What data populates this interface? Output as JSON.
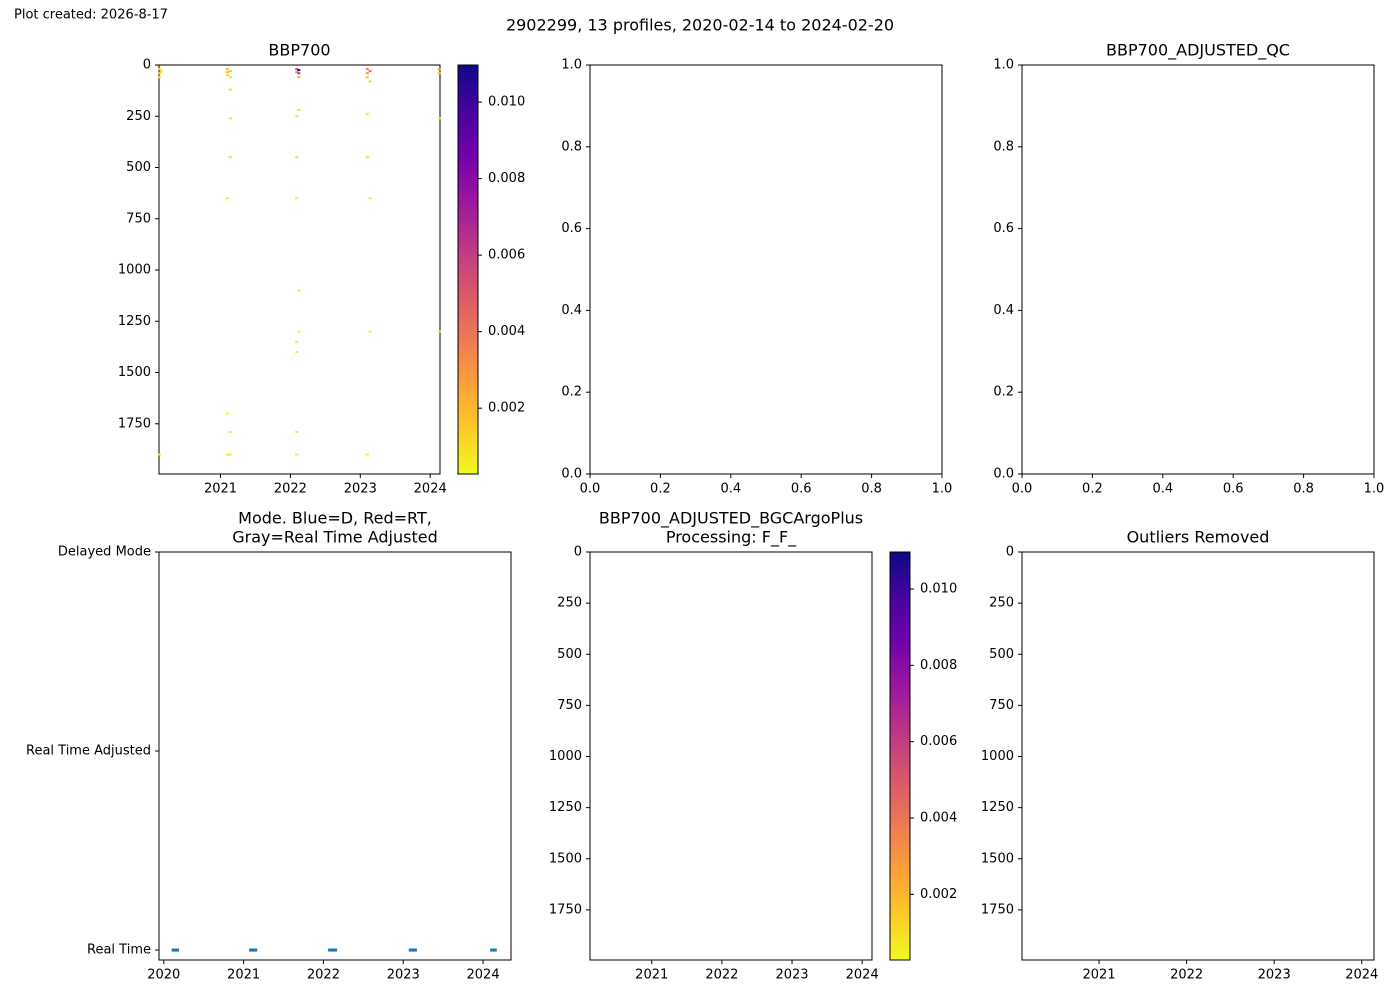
{
  "figure": {
    "note": "Plot created: 2026-8-17",
    "title": "2902299, 13 profiles, 2020-02-14 to 2024-02-20"
  },
  "chart_data": [
    {
      "type": "scatter",
      "title": [
        "BBP700"
      ],
      "x": [
        2020.13,
        2020.13,
        2020.13,
        2020.13,
        2020.15,
        2021.1,
        2021.1,
        2021.1,
        2021.1,
        2021.1,
        2021.1,
        2021.14,
        2021.14,
        2021.14,
        2021.14,
        2021.14,
        2021.14,
        2021.14,
        2022.09,
        2022.09,
        2022.09,
        2022.09,
        2022.09,
        2022.09,
        2022.09,
        2022.09,
        2022.09,
        2022.12,
        2022.12,
        2022.12,
        2022.12,
        2022.12,
        2022.12,
        2023.1,
        2023.1,
        2023.1,
        2023.1,
        2023.1,
        2023.1,
        2023.14,
        2023.14,
        2023.14,
        2023.14,
        2024.13,
        2024.13,
        2024.13,
        2024.13
      ],
      "y": [
        20,
        40,
        60,
        1900,
        30,
        20,
        35,
        50,
        650,
        1700,
        1900,
        30,
        60,
        120,
        260,
        450,
        1790,
        1900,
        20,
        35,
        250,
        450,
        650,
        1350,
        1400,
        1790,
        1900,
        25,
        40,
        60,
        220,
        1100,
        1300,
        20,
        40,
        60,
        240,
        450,
        1900,
        30,
        80,
        650,
        1300,
        20,
        40,
        260,
        1300
      ],
      "values": [
        0.0012,
        0.0015,
        0.0009,
        0.0004,
        0.0008,
        0.0018,
        0.0022,
        0.0013,
        0.0006,
        0.0005,
        0.0004,
        0.0016,
        0.001,
        0.0007,
        0.0006,
        0.0008,
        0.0005,
        0.0004,
        0.0052,
        0.0035,
        0.0008,
        0.0007,
        0.0006,
        0.0005,
        0.0004,
        0.0005,
        0.0004,
        0.0105,
        0.0062,
        0.0021,
        0.0007,
        0.0005,
        0.0005,
        0.0038,
        0.0028,
        0.0016,
        0.0008,
        0.0009,
        0.0004,
        0.0041,
        0.0012,
        0.0006,
        0.0005,
        0.0025,
        0.0019,
        0.0006,
        0.0004
      ],
      "colormap": "plasma_r",
      "clim": [
        0.00028,
        0.01097
      ],
      "cticks": [
        0.002,
        0.004,
        0.006,
        0.008,
        {
          "value": 0.01,
          "label": "0.010"
        }
      ],
      "xlim": [
        2020.12,
        2024.14
      ],
      "xticks": [
        2021,
        2022,
        2023,
        2024
      ],
      "ylim": [
        1995,
        0
      ],
      "yticks": [
        0,
        250,
        500,
        750,
        1000,
        1250,
        1500,
        1750
      ]
    },
    {
      "type": "scatter",
      "xlim": [
        0,
        1
      ],
      "xticks": [
        {
          "value": 0,
          "label": "0.0"
        },
        {
          "value": 0.2,
          "label": "0.2"
        },
        {
          "value": 0.4,
          "label": "0.4"
        },
        {
          "value": 0.6,
          "label": "0.6"
        },
        {
          "value": 0.8,
          "label": "0.8"
        },
        {
          "value": 1,
          "label": "1.0"
        }
      ],
      "ylim": [
        0,
        1
      ],
      "yticks": [
        {
          "value": 0,
          "label": "0.0"
        },
        {
          "value": 0.2,
          "label": "0.2"
        },
        {
          "value": 0.4,
          "label": "0.4"
        },
        {
          "value": 0.6,
          "label": "0.6"
        },
        {
          "value": 0.8,
          "label": "0.8"
        },
        {
          "value": 1,
          "label": "1.0"
        }
      ]
    },
    {
      "type": "scatter",
      "title": [
        "BBP700_ADJUSTED_QC"
      ],
      "xlim": [
        0,
        1
      ],
      "xticks": [
        {
          "value": 0,
          "label": "0.0"
        },
        {
          "value": 0.2,
          "label": "0.2"
        },
        {
          "value": 0.4,
          "label": "0.4"
        },
        {
          "value": 0.6,
          "label": "0.6"
        },
        {
          "value": 0.8,
          "label": "0.8"
        },
        {
          "value": 1,
          "label": "1.0"
        }
      ],
      "ylim": [
        0,
        1
      ],
      "yticks": [
        {
          "value": 0,
          "label": "0.0"
        },
        {
          "value": 0.2,
          "label": "0.2"
        },
        {
          "value": 0.4,
          "label": "0.4"
        },
        {
          "value": 0.6,
          "label": "0.6"
        },
        {
          "value": 0.8,
          "label": "0.8"
        },
        {
          "value": 1,
          "label": "1.0"
        }
      ]
    },
    {
      "type": "scatter",
      "title": [
        "Mode. Blue=D, Red=RT,",
        "Gray=Real Time Adjusted"
      ],
      "x": [
        2020.13,
        2020.16,
        2021.1,
        2021.12,
        2021.14,
        2022.09,
        2022.12,
        2022.14,
        2023.1,
        2023.12,
        2023.14,
        2024.12,
        2024.14
      ],
      "values": [
        0,
        0,
        0,
        0,
        0,
        0,
        0,
        0,
        0,
        0,
        0,
        0,
        0
      ],
      "color": "#1f77b4",
      "xlim": [
        2019.94,
        2024.35
      ],
      "xticks": [
        2020,
        2021,
        2022,
        2023,
        2024
      ],
      "ylim": [
        -0.05,
        2
      ],
      "yticks": [
        {
          "value": 0,
          "label": "Real Time"
        },
        {
          "value": 1,
          "label": "Real Time Adjusted"
        },
        {
          "value": 2,
          "label": "Delayed Mode"
        }
      ]
    },
    {
      "type": "scatter",
      "title": [
        "BBP700_ADJUSTED_BGCArgoPlus",
        "Processing: F_F_"
      ],
      "colormap": "plasma_r",
      "clim": [
        0.00028,
        0.01097
      ],
      "cticks": [
        0.002,
        0.004,
        0.006,
        0.008,
        {
          "value": 0.01,
          "label": "0.010"
        }
      ],
      "xlim": [
        2020.12,
        2024.14
      ],
      "xticks": [
        2021,
        2022,
        2023,
        2024
      ],
      "ylim": [
        1995,
        0
      ],
      "yticks": [
        0,
        250,
        500,
        750,
        1000,
        1250,
        1500,
        1750
      ]
    },
    {
      "type": "scatter",
      "title": [
        "Outliers Removed"
      ],
      "xlim": [
        2020.12,
        2024.14
      ],
      "xticks": [
        2021,
        2022,
        2023,
        2024
      ],
      "ylim": [
        1995,
        0
      ],
      "yticks": [
        0,
        250,
        500,
        750,
        1000,
        1250,
        1500,
        1750
      ]
    }
  ]
}
